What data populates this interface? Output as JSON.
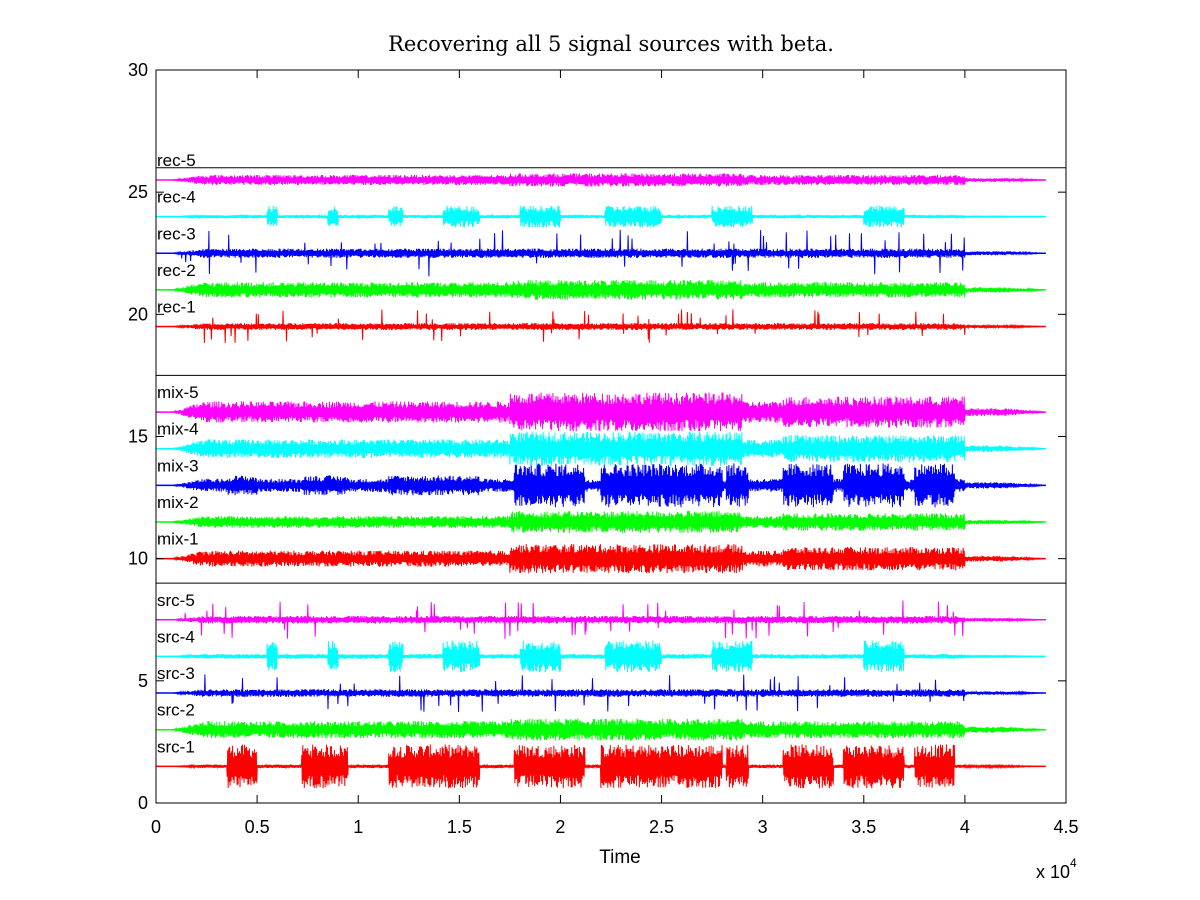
{
  "chart_data": {
    "type": "line",
    "title": "Recovering all 5 signal sources with beta.",
    "xlabel": "Time",
    "ylabel": "",
    "x_exponent_label": "x 10",
    "x_exponent_sup": "4",
    "xlim": [
      0,
      4.5
    ],
    "ylim": [
      0,
      30
    ],
    "x_ticks": [
      "0",
      "0.5",
      "1",
      "1.5",
      "2",
      "2.5",
      "3",
      "3.5",
      "4",
      "4.5"
    ],
    "y_ticks": [
      "0",
      "5",
      "10",
      "15",
      "20",
      "25",
      "30"
    ],
    "x_tick_values": [
      0,
      0.5,
      1,
      1.5,
      2,
      2.5,
      3,
      3.5,
      4,
      4.5
    ],
    "y_tick_values": [
      0,
      5,
      10,
      15,
      20,
      25,
      30
    ],
    "signal_end": 4.4,
    "separators": [
      9,
      17.5,
      26
    ],
    "grid": false,
    "series": [
      {
        "name": "src-1",
        "baseline": 1.5,
        "color": "#ff0000",
        "amp": 0.9,
        "profile": "blocks"
      },
      {
        "name": "src-2",
        "baseline": 3.0,
        "color": "#00ff00",
        "amp": 0.5,
        "profile": "steady"
      },
      {
        "name": "src-3",
        "baseline": 4.5,
        "color": "#0000ff",
        "amp": 0.45,
        "profile": "spiky"
      },
      {
        "name": "src-4",
        "baseline": 6.0,
        "color": "#00ffff",
        "amp": 0.65,
        "profile": "bursts"
      },
      {
        "name": "src-5",
        "baseline": 7.5,
        "color": "#ff00ff",
        "amp": 0.45,
        "profile": "spiky"
      },
      {
        "name": "mix-1",
        "baseline": 10.0,
        "color": "#ff0000",
        "amp": 0.6,
        "profile": "mix"
      },
      {
        "name": "mix-2",
        "baseline": 11.5,
        "color": "#00ff00",
        "amp": 0.45,
        "profile": "mix"
      },
      {
        "name": "mix-3",
        "baseline": 13.0,
        "color": "#0000ff",
        "amp": 0.9,
        "profile": "mixblocks"
      },
      {
        "name": "mix-4",
        "baseline": 14.5,
        "color": "#00ffff",
        "amp": 0.7,
        "profile": "mix"
      },
      {
        "name": "mix-5",
        "baseline": 16.0,
        "color": "#ff00ff",
        "amp": 0.8,
        "profile": "mix"
      },
      {
        "name": "rec-1",
        "baseline": 19.5,
        "color": "#ff0000",
        "amp": 0.4,
        "profile": "spiky"
      },
      {
        "name": "rec-2",
        "baseline": 21.0,
        "color": "#00ff00",
        "amp": 0.45,
        "profile": "steady"
      },
      {
        "name": "rec-3",
        "baseline": 22.5,
        "color": "#0000ff",
        "amp": 0.55,
        "profile": "spiky"
      },
      {
        "name": "rec-4",
        "baseline": 24.0,
        "color": "#00ffff",
        "amp": 0.45,
        "profile": "bursts"
      },
      {
        "name": "rec-5",
        "baseline": 25.5,
        "color": "#ff00ff",
        "amp": 0.3,
        "profile": "steady"
      }
    ]
  }
}
